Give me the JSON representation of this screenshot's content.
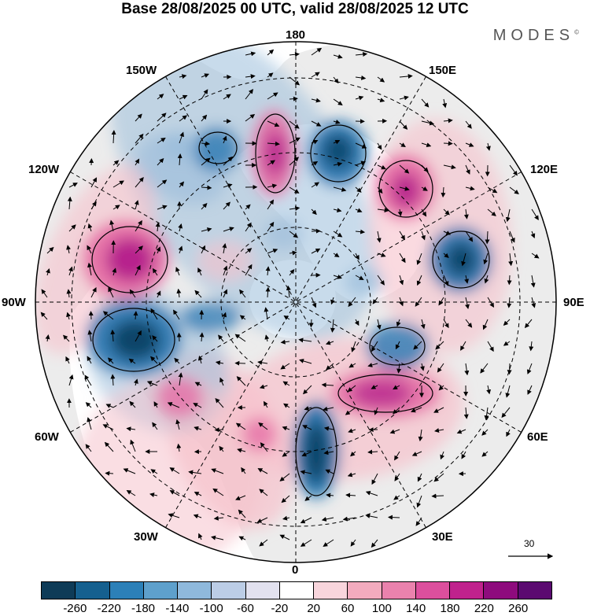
{
  "title": "Base 28/08/2025 00 UTC, valid 28/08/2025 12 UTC",
  "brand": "MODES",
  "brand_mark": "©",
  "longitude_labels": {
    "n180": "180",
    "s0": "0",
    "w90": "90W",
    "e90": "90E",
    "w150": "150W",
    "e150": "150E",
    "w120": "120W",
    "e120": "120E",
    "w60": "60W",
    "e60": "60E",
    "w30": "30W",
    "e30": "30E"
  },
  "reference_vector": "30",
  "colors": {
    "blue_dark": "#0b3f62",
    "blue": "#2877b1",
    "blue_light": "#9bbddb",
    "pink_light": "#f6c2cc",
    "pink": "#e46aa3",
    "magenta": "#b11a8a",
    "land": "#ececec",
    "ocean": "#ffffff"
  },
  "colorbar": {
    "ticks": [
      "-260",
      "-220",
      "-180",
      "-140",
      "-100",
      "-60",
      "-20",
      "20",
      "60",
      "100",
      "140",
      "180",
      "220",
      "260"
    ],
    "colors": [
      "#0e3b57",
      "#15608f",
      "#2c80b8",
      "#5ea0cc",
      "#8fb9dc",
      "#bccde6",
      "#e2e1ef",
      "#ffffff",
      "#f8d5dc",
      "#f3abbe",
      "#ea82ad",
      "#dc4f9d",
      "#c0228d",
      "#8e0b7d",
      "#5b0a70"
    ]
  }
}
